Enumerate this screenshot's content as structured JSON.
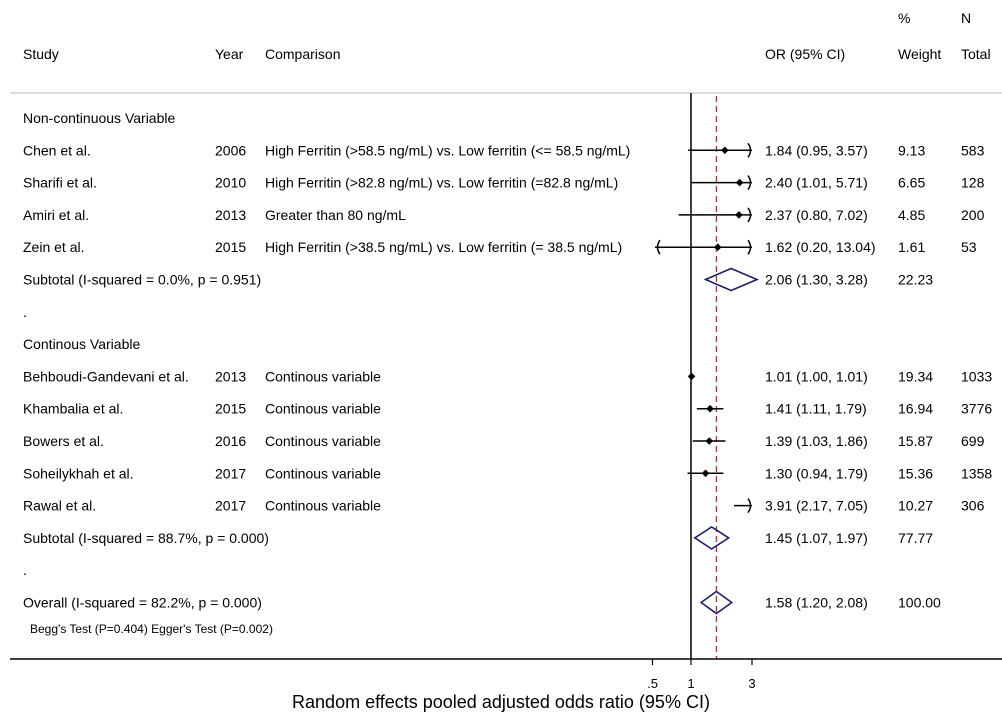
{
  "chart_data": {
    "type": "forest",
    "headers": {
      "study": "Study",
      "year": "Year",
      "comparison": "Comparison",
      "or_ci": "OR (95% CI)",
      "weight_top": "%",
      "weight_bottom": "Weight",
      "n_top": "N",
      "n_bottom": "Total"
    },
    "xlabel": "Random effects pooled adjusted odds ratio (95% CI)",
    "x_scale": "log",
    "x_ticks": [
      {
        "value": 0.5,
        "label": ".5"
      },
      {
        "value": 1,
        "label": "1"
      },
      {
        "value": 3,
        "label": "3"
      }
    ],
    "x_range": [
      0.3,
      4.0
    ],
    "null_line": 1,
    "overall_line": 1.58,
    "rows": [
      {
        "kind": "group",
        "label": "Non-continuous Variable"
      },
      {
        "kind": "study",
        "study": "Chen et al.",
        "year": "2006",
        "comparison": "High Ferritin (>58.5 ng/mL) vs. Low ferritin (<= 58.5 ng/mL)",
        "or": 1.84,
        "lo": 0.95,
        "hi": 3.57,
        "or_text": "1.84 (0.95, 3.57)",
        "weight": "9.13",
        "n": "583"
      },
      {
        "kind": "study",
        "study": "Sharifi et al.",
        "year": "2010",
        "comparison": "High Ferritin (>82.8 ng/mL) vs. Low ferritin (=82.8 ng/mL)",
        "or": 2.4,
        "lo": 1.01,
        "hi": 5.71,
        "or_text": "2.40 (1.01, 5.71)",
        "weight": "6.65",
        "n": "128"
      },
      {
        "kind": "study",
        "study": "Amiri et al.",
        "year": "2013",
        "comparison": "Greater than 80 ng/mL",
        "or": 2.37,
        "lo": 0.8,
        "hi": 7.02,
        "or_text": "2.37 (0.80, 7.02)",
        "weight": "4.85",
        "n": "200"
      },
      {
        "kind": "study",
        "study": "Zein et al.",
        "year": "2015",
        "comparison": "High Ferritin (>38.5 ng/mL) vs. Low ferritin (= 38.5 ng/mL)",
        "or": 1.62,
        "lo": 0.2,
        "hi": 13.04,
        "or_text": "1.62 (0.20, 13.04)",
        "weight": "1.61",
        "n": "53"
      },
      {
        "kind": "subtotal",
        "study": "Subtotal  (I-squared = 0.0%, p = 0.951)",
        "or": 2.06,
        "lo": 1.3,
        "hi": 3.28,
        "or_text": "2.06 (1.30, 3.28)",
        "weight": "22.23",
        "n": ""
      },
      {
        "kind": "spacer",
        "label": "."
      },
      {
        "kind": "group",
        "label": "Continous Variable"
      },
      {
        "kind": "study",
        "study": "Behboudi-Gandevani et al.",
        "year": "2013",
        "comparison": "Continous variable",
        "or": 1.01,
        "lo": 1.0,
        "hi": 1.01,
        "or_text": "1.01 (1.00, 1.01)",
        "weight": "19.34",
        "n": "1033"
      },
      {
        "kind": "study",
        "study": "Khambalia et al.",
        "year": "2015",
        "comparison": "Continous variable",
        "or": 1.41,
        "lo": 1.11,
        "hi": 1.79,
        "or_text": "1.41 (1.11, 1.79)",
        "weight": "16.94",
        "n": "3776"
      },
      {
        "kind": "study",
        "study": "Bowers et al.",
        "year": "2016",
        "comparison": "Continous variable",
        "or": 1.39,
        "lo": 1.03,
        "hi": 1.86,
        "or_text": "1.39 (1.03, 1.86)",
        "weight": "15.87",
        "n": "699"
      },
      {
        "kind": "study",
        "study": "Soheilykhah et al.",
        "year": "2017",
        "comparison": "Continous variable",
        "or": 1.3,
        "lo": 0.94,
        "hi": 1.79,
        "or_text": "1.30 (0.94, 1.79)",
        "weight": "15.36",
        "n": "1358"
      },
      {
        "kind": "study",
        "study": "Rawal et al.",
        "year": "2017",
        "comparison": "Continous variable",
        "or": 3.91,
        "lo": 2.17,
        "hi": 7.05,
        "or_text": "3.91 (2.17, 7.05)",
        "weight": "10.27",
        "n": "306"
      },
      {
        "kind": "subtotal",
        "study": "Subtotal  (I-squared = 88.7%, p = 0.000)",
        "or": 1.45,
        "lo": 1.07,
        "hi": 1.97,
        "or_text": "1.45 (1.07, 1.97)",
        "weight": "77.77",
        "n": ""
      },
      {
        "kind": "spacer",
        "label": "."
      },
      {
        "kind": "subtotal",
        "study": "Overall  (I-squared = 82.2%, p = 0.000)",
        "or": 1.58,
        "lo": 1.2,
        "hi": 2.08,
        "or_text": "1.58 (1.20, 2.08)",
        "weight": "100.00",
        "n": ""
      }
    ],
    "footnote": "Begg's Test (P=0.404) Egger's Test (P=0.002)",
    "colors": {
      "diamond": "#1f1f6e",
      "overall_line": "#b03a3a",
      "marks": "#000000"
    }
  }
}
